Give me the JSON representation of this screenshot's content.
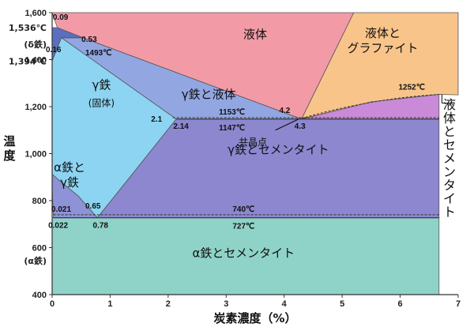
{
  "chart_data": {
    "type": "phase-diagram",
    "xlabel": "炭素濃度（%）",
    "ylabel": "温度",
    "xlim": [
      0,
      7
    ],
    "ylim": [
      400,
      1600
    ],
    "x_ticks": [
      "0",
      "1",
      "2",
      "3",
      "4",
      "5",
      "6",
      "7"
    ],
    "x_tick_values": [
      0,
      1,
      2,
      3,
      4,
      5,
      6,
      7
    ],
    "y_ticks": [
      "400",
      "600",
      "800",
      "1,000",
      "1,200",
      "1,400",
      "1,600"
    ],
    "y_tick_values": [
      400,
      600,
      800,
      1000,
      1200,
      1400,
      1600
    ],
    "y_side_labels": [
      {
        "text": "1,536℃",
        "y": 1536
      },
      {
        "text": "(δ鉄)",
        "y": 1465
      },
      {
        "text": "1,394℃",
        "y": 1394
      },
      {
        "text": "(α鉄)",
        "y": 545
      }
    ],
    "regions": [
      {
        "id": "liquid",
        "label": "液体",
        "color": "#f29aa6",
        "points": [
          [
            0.09,
            1536
          ],
          [
            0.53,
            1493
          ],
          [
            4.3,
            1147
          ],
          [
            5.2,
            1600
          ],
          [
            0,
            1600
          ]
        ]
      },
      {
        "id": "liquid-graphite",
        "label": "液体と\nグラファイト",
        "color": "#f8c48a",
        "points": [
          [
            4.3,
            1147
          ],
          [
            5.2,
            1600
          ],
          [
            7,
            1600
          ],
          [
            7,
            1250
          ],
          [
            6.67,
            1252
          ],
          [
            5.5,
            1220
          ],
          [
            4.3,
            1147
          ]
        ]
      },
      {
        "id": "liquid-cementite",
        "label": "液体とセメンタイト",
        "color": "#c98ad8",
        "points": [
          [
            4.3,
            1147
          ],
          [
            5.5,
            1220
          ],
          [
            6.67,
            1252
          ],
          [
            6.67,
            1147
          ]
        ]
      },
      {
        "id": "gamma-liquid",
        "label": "γ鉄と液体",
        "color": "#92a6e2",
        "points": [
          [
            0.16,
            1493
          ],
          [
            0.53,
            1493
          ],
          [
            4.3,
            1147
          ],
          [
            2.14,
            1147
          ]
        ]
      },
      {
        "id": "gamma",
        "label": "γ鉄\n(固体)",
        "color": "#8dd4f2",
        "points": [
          [
            0,
            1394
          ],
          [
            0.09,
            1450
          ],
          [
            0.16,
            1493
          ],
          [
            2.14,
            1147
          ],
          [
            0.78,
            727
          ],
          [
            0.45,
            820
          ],
          [
            0.15,
            880
          ],
          [
            0,
            912
          ]
        ]
      },
      {
        "id": "delta",
        "label": "",
        "color": "#5a6fbf",
        "points": [
          [
            0,
            1536
          ],
          [
            0.09,
            1536
          ],
          [
            0.53,
            1493
          ],
          [
            0.16,
            1493
          ],
          [
            0.09,
            1450
          ],
          [
            0,
            1394
          ]
        ]
      },
      {
        "id": "alpha-gamma",
        "label": "α鉄と\nγ鉄",
        "color": "#8e92d6",
        "points": [
          [
            0,
            912
          ],
          [
            0.15,
            880
          ],
          [
            0.45,
            820
          ],
          [
            0.78,
            727
          ],
          [
            0.022,
            727
          ],
          [
            0,
            860
          ]
        ]
      },
      {
        "id": "gamma-cementite",
        "label": "γ鉄とセメンタイト",
        "color": "#8c87cf",
        "points": [
          [
            2.14,
            1147
          ],
          [
            6.67,
            1147
          ],
          [
            6.67,
            727
          ],
          [
            0.78,
            727
          ]
        ]
      },
      {
        "id": "alpha-cementite",
        "label": "α鉄とセメンタイト",
        "color": "#8fd3c8",
        "points": [
          [
            0,
            727
          ],
          [
            6.67,
            727
          ],
          [
            6.67,
            400
          ],
          [
            0,
            400
          ]
        ]
      }
    ],
    "lines": [
      {
        "name": "eutectic",
        "y": 1147,
        "x": [
          2.14,
          6.67
        ]
      },
      {
        "name": "upper-eutectic-stable",
        "y": 1153,
        "x": [
          2.08,
          6.67
        ]
      },
      {
        "name": "eutectoid",
        "y": 727,
        "x": [
          0.022,
          6.67
        ]
      },
      {
        "name": "upper-eutectoid-stable",
        "y": 740,
        "x": [
          0.022,
          6.67
        ]
      }
    ],
    "annotations": [
      {
        "text": "0.09",
        "x": 0.09,
        "y": 1536
      },
      {
        "text": "0.53",
        "x": 0.53,
        "y": 1493
      },
      {
        "text": "0.16",
        "x": 0.16,
        "y": 1493
      },
      {
        "text": "1493℃",
        "x": 0.5,
        "y": 1493
      },
      {
        "text": "4.2",
        "x": 4.2,
        "y": 1153
      },
      {
        "text": "4.3",
        "x": 4.3,
        "y": 1147
      },
      {
        "text": "2.1",
        "x": 2.1,
        "y": 1153
      },
      {
        "text": "2.14",
        "x": 2.14,
        "y": 1147
      },
      {
        "text": "1153℃",
        "x": 3.1,
        "y": 1153
      },
      {
        "text": "1147℃",
        "x": 3.1,
        "y": 1147
      },
      {
        "text": "1252℃",
        "x": 6.2,
        "y": 1252
      },
      {
        "text": "共晶点",
        "x": 4.25,
        "y": 1150
      },
      {
        "text": "0.65",
        "x": 0.65,
        "y": 740
      },
      {
        "text": "0.021",
        "x": 0.021,
        "y": 740
      },
      {
        "text": "0.022",
        "x": 0.022,
        "y": 727
      },
      {
        "text": "0.78",
        "x": 0.78,
        "y": 727
      },
      {
        "text": "740℃",
        "x": 3.3,
        "y": 740
      },
      {
        "text": "727℃",
        "x": 3.3,
        "y": 727
      }
    ],
    "grid": false,
    "colors": {
      "background": "#ffffff",
      "axis": "#333333",
      "line": "#444444"
    }
  }
}
